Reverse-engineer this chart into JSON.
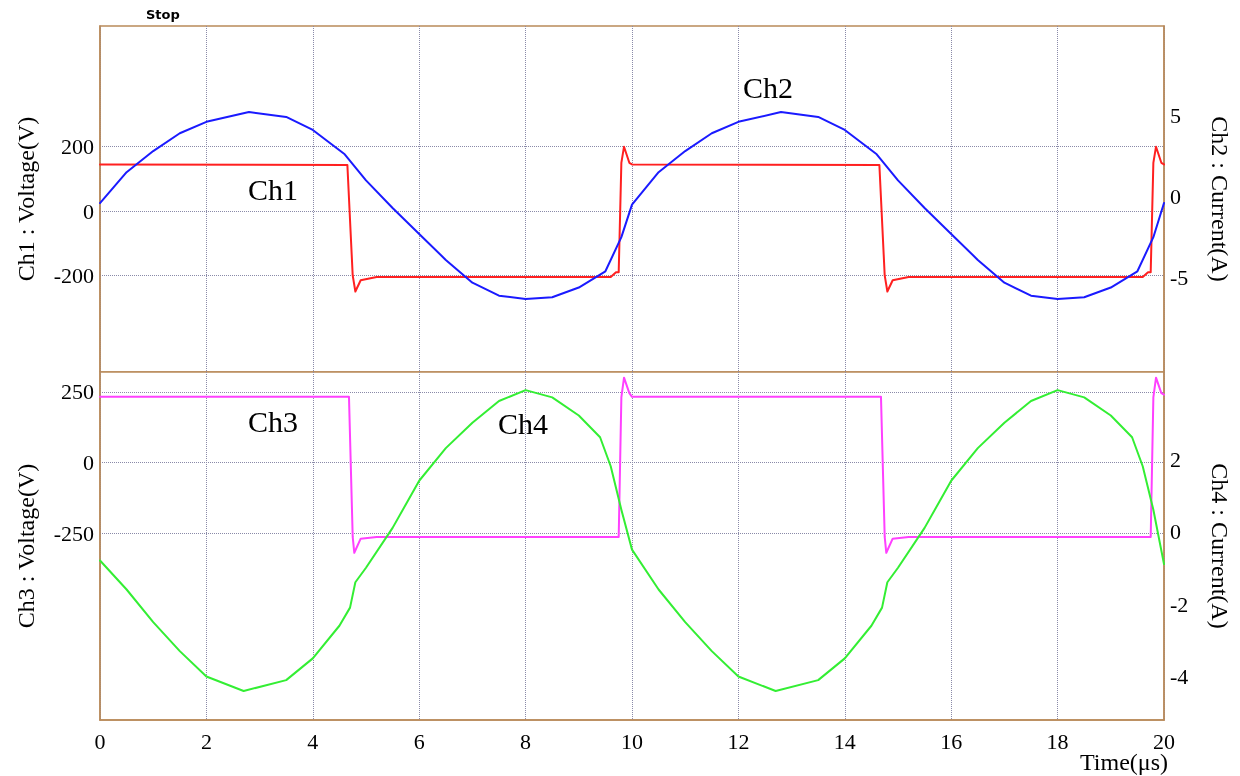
{
  "chart_data": [
    {
      "type": "line",
      "annotations": [
        "Stop"
      ],
      "ylabel": "Ch1 : Voltage(V)",
      "y2label": "Ch2 : Current(A)",
      "xlim": [
        0,
        20
      ],
      "xticks": [
        0,
        2,
        4,
        6,
        8,
        10,
        12,
        14,
        16,
        18,
        20
      ],
      "ylim": [
        -500,
        575
      ],
      "yticks": [
        -200,
        0,
        200
      ],
      "y2lim": [
        -10.8,
        10.5
      ],
      "y2ticks": [
        -5,
        0,
        5
      ],
      "tick_labels": "y",
      "grid": true,
      "marker": "none",
      "series": [
        {
          "name": "Ch1",
          "color": "#ff2020",
          "x": [
            0,
            4.65,
            4.75,
            4.8,
            4.9,
            5.2,
            9.6,
            9.7,
            9.75,
            9.8,
            9.85,
            9.95,
            10,
            14.65,
            14.75,
            14.8,
            14.9,
            15.2,
            19.6,
            19.7,
            19.75,
            19.8,
            19.85,
            19.95,
            20
          ],
          "values": [
            145,
            143,
            -200,
            -250,
            -215,
            -205,
            -205,
            -190,
            -190,
            150,
            200,
            150,
            145,
            143,
            -200,
            -250,
            -215,
            -205,
            -205,
            -190,
            -190,
            150,
            200,
            150,
            145
          ]
        },
        {
          "name": "Ch2",
          "color": "#1a1aff",
          "axis": "y2",
          "x": [
            0,
            0.5,
            1,
            1.5,
            2,
            2.8,
            3.5,
            4,
            4.6,
            5,
            5.5,
            6,
            6.5,
            7,
            7.5,
            8,
            8.5,
            9,
            9.5,
            9.8,
            10,
            10.5,
            11,
            11.5,
            12,
            12.8,
            13.5,
            14,
            14.6,
            15,
            15.5,
            16,
            16.5,
            17,
            17.5,
            18,
            18.5,
            19,
            19.5,
            19.8,
            20
          ],
          "values": [
            -0.4,
            1.5,
            2.8,
            3.9,
            4.6,
            5.2,
            4.9,
            4.1,
            2.6,
            1.0,
            -0.7,
            -2.3,
            -3.9,
            -5.3,
            -6.1,
            -6.3,
            -6.2,
            -5.6,
            -4.6,
            -2.5,
            -0.5,
            1.5,
            2.8,
            3.9,
            4.6,
            5.2,
            4.9,
            4.1,
            2.6,
            1.0,
            -0.7,
            -2.3,
            -3.9,
            -5.3,
            -6.1,
            -6.3,
            -6.2,
            -5.6,
            -4.6,
            -2.5,
            -0.4
          ]
        }
      ]
    },
    {
      "type": "line",
      "xlabel": "Time(μs)",
      "ylabel": "Ch3 : Voltage(V)",
      "y2label": "Ch4 : Current(A)",
      "xlim": [
        0,
        20
      ],
      "xticks": [
        0,
        2,
        4,
        6,
        8,
        10,
        12,
        14,
        16,
        18,
        20
      ],
      "ylim": [
        -912,
        320
      ],
      "yticks": [
        -250,
        0,
        250
      ],
      "y2lim": [
        -5.2,
        4.4
      ],
      "y2ticks": [
        -4,
        -2,
        0,
        2
      ],
      "grid": true,
      "marker": "none",
      "series": [
        {
          "name": "Ch3",
          "color": "#ff40ff",
          "x": [
            0,
            4.68,
            4.75,
            4.78,
            4.9,
            5.2,
            9.75,
            9.8,
            9.85,
            9.95,
            10,
            14.68,
            14.75,
            14.78,
            14.9,
            15.2,
            19.75,
            19.8,
            19.85,
            19.95,
            20
          ],
          "values": [
            232,
            232,
            -264,
            -320,
            -270,
            -264,
            -264,
            230,
            300,
            245,
            232,
            232,
            -264,
            -320,
            -270,
            -264,
            -264,
            230,
            300,
            245,
            240
          ]
        },
        {
          "name": "Ch4",
          "color": "#33ee33",
          "axis": "y2",
          "x": [
            0,
            0.5,
            1,
            1.5,
            2,
            2.7,
            3.5,
            4,
            4.5,
            4.7,
            4.8,
            5,
            5.5,
            6,
            6.5,
            7,
            7.5,
            8,
            8.5,
            9,
            9.4,
            9.6,
            9.8,
            10,
            10.5,
            11,
            11.5,
            12,
            12.7,
            13.5,
            14,
            14.5,
            14.7,
            14.8,
            15,
            15.5,
            16,
            16.5,
            17,
            17.5,
            18,
            18.5,
            19,
            19.4,
            19.6,
            19.8,
            20
          ],
          "values": [
            -0.8,
            -1.6,
            -2.5,
            -3.3,
            -4.0,
            -4.4,
            -4.1,
            -3.5,
            -2.6,
            -2.1,
            -1.4,
            -1.0,
            0.1,
            1.4,
            2.3,
            3.0,
            3.6,
            3.9,
            3.7,
            3.2,
            2.6,
            1.8,
            0.6,
            -0.5,
            -1.6,
            -2.5,
            -3.3,
            -4.0,
            -4.4,
            -4.1,
            -3.5,
            -2.6,
            -2.1,
            -1.4,
            -1.0,
            0.1,
            1.4,
            2.3,
            3.0,
            3.6,
            3.9,
            3.7,
            3.2,
            2.6,
            1.8,
            0.6,
            -0.9
          ]
        }
      ]
    }
  ]
}
